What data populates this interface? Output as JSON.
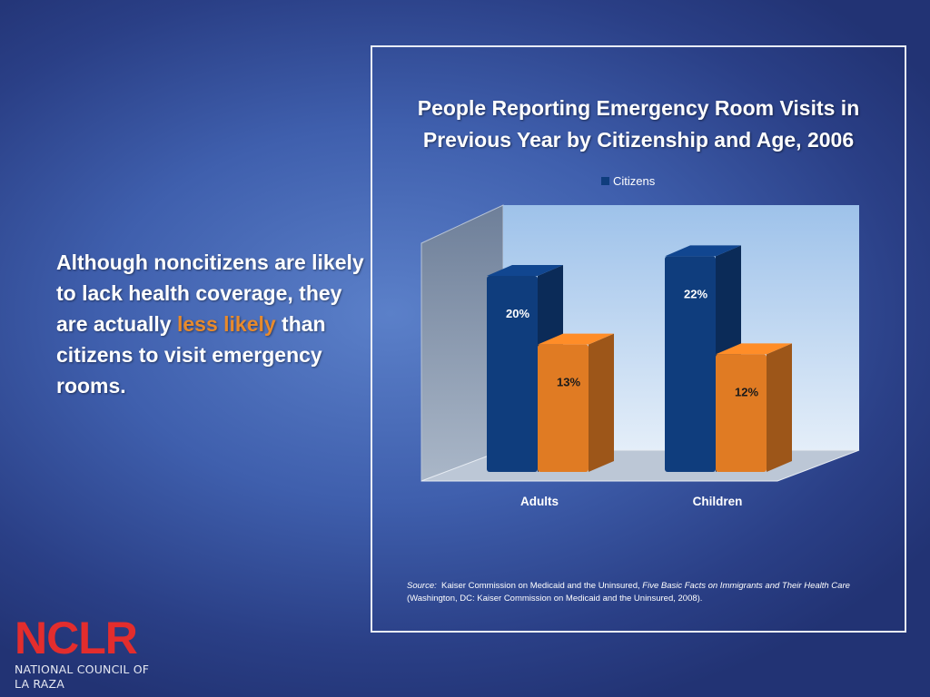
{
  "left_text": {
    "part1": "Although noncitizens are likely to lack health coverage, they are actually ",
    "highlight": "less likely",
    "part2": " than citizens to visit emergency rooms."
  },
  "colors": {
    "citizens": "#0f3d7d",
    "noncitizens": "#e07b23",
    "highlight": "#e88a2c",
    "logo": "#e32d2d"
  },
  "chart_data": {
    "type": "bar",
    "title": "People Reporting Emergency Room Visits in Previous Year by Citizenship and Age, 2006",
    "categories": [
      "Adults",
      "Children"
    ],
    "series": [
      {
        "name": "Citizens",
        "values": [
          20,
          22
        ],
        "labels": [
          "20%",
          "22%"
        ]
      },
      {
        "values": [
          13,
          12
        ],
        "labels": [
          "13%",
          "12%"
        ]
      }
    ],
    "legend": [
      "Citizens"
    ],
    "legend_position": "top",
    "ylim": [
      0,
      25
    ],
    "grid": false,
    "three_d": true
  },
  "source": {
    "label": "Source:",
    "text1": "Kaiser Commission on Medicaid and the Uninsured, ",
    "title": "Five Basic Facts on Immigrants and Their Health Care",
    "text2": " (Washington, DC:  Kaiser Commission on Medicaid and the Uninsured, 2008)."
  },
  "logo": {
    "mark": "NCLR",
    "subtitle": "NATIONAL COUNCIL OF LA RAZA"
  }
}
